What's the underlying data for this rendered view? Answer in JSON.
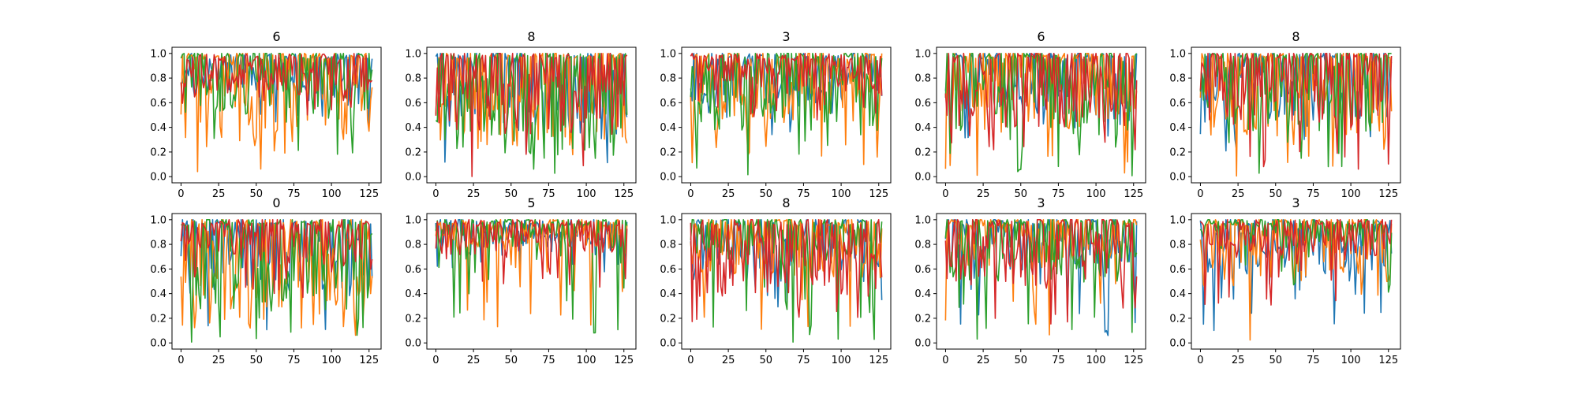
{
  "chart_data": [
    {
      "type": "line",
      "title": "6",
      "xlim": [
        -6,
        133
      ],
      "ylim": [
        -0.05,
        1.05
      ],
      "xticks": [
        0,
        25,
        50,
        75,
        100,
        125
      ],
      "yticks": [
        0.0,
        0.2,
        0.4,
        0.6,
        0.8,
        1.0
      ],
      "points": 128,
      "profile": [
        {
          "base": 0.83,
          "amp": 0.18,
          "floor": 0.35
        },
        {
          "base": 0.68,
          "amp": 0.55,
          "floor": 0.0
        },
        {
          "base": 0.8,
          "amp": 0.4,
          "floor": 0.1
        },
        {
          "base": 0.82,
          "amp": 0.2,
          "floor": 0.45
        }
      ]
    },
    {
      "type": "line",
      "title": "8",
      "xlim": [
        -6,
        133
      ],
      "ylim": [
        -0.05,
        1.05
      ],
      "xticks": [
        0,
        25,
        50,
        75,
        100,
        125
      ],
      "yticks": [
        0.0,
        0.2,
        0.4,
        0.6,
        0.8,
        1.0
      ],
      "points": 128,
      "profile": [
        {
          "base": 0.7,
          "amp": 0.5,
          "floor": 0.05
        },
        {
          "base": 0.65,
          "amp": 0.55,
          "floor": 0.0
        },
        {
          "base": 0.6,
          "amp": 0.6,
          "floor": 0.0
        },
        {
          "base": 0.7,
          "amp": 0.5,
          "floor": 0.0
        }
      ]
    },
    {
      "type": "line",
      "title": "3",
      "xlim": [
        -6,
        133
      ],
      "ylim": [
        -0.05,
        1.05
      ],
      "xticks": [
        0,
        25,
        50,
        75,
        100,
        125
      ],
      "yticks": [
        0.0,
        0.2,
        0.4,
        0.6,
        0.8,
        1.0
      ],
      "points": 128,
      "profile": [
        {
          "base": 0.78,
          "amp": 0.3,
          "floor": 0.3
        },
        {
          "base": 0.75,
          "amp": 0.45,
          "floor": 0.05
        },
        {
          "base": 0.72,
          "amp": 0.5,
          "floor": 0.0
        },
        {
          "base": 0.82,
          "amp": 0.22,
          "floor": 0.45
        }
      ]
    },
    {
      "type": "line",
      "title": "6",
      "xlim": [
        -6,
        133
      ],
      "ylim": [
        -0.05,
        1.05
      ],
      "xticks": [
        0,
        25,
        50,
        75,
        100,
        125
      ],
      "yticks": [
        0.0,
        0.2,
        0.4,
        0.6,
        0.8,
        1.0
      ],
      "points": 128,
      "profile": [
        {
          "base": 0.75,
          "amp": 0.35,
          "floor": 0.3
        },
        {
          "base": 0.72,
          "amp": 0.5,
          "floor": 0.0
        },
        {
          "base": 0.7,
          "amp": 0.5,
          "floor": 0.0
        },
        {
          "base": 0.72,
          "amp": 0.45,
          "floor": 0.1
        }
      ]
    },
    {
      "type": "line",
      "title": "8",
      "xlim": [
        -6,
        133
      ],
      "ylim": [
        -0.05,
        1.05
      ],
      "xticks": [
        0,
        25,
        50,
        75,
        100,
        125
      ],
      "yticks": [
        0.0,
        0.2,
        0.4,
        0.6,
        0.8,
        1.0
      ],
      "points": 128,
      "profile": [
        {
          "base": 0.72,
          "amp": 0.4,
          "floor": 0.2
        },
        {
          "base": 0.68,
          "amp": 0.5,
          "floor": 0.0
        },
        {
          "base": 0.72,
          "amp": 0.5,
          "floor": 0.0
        },
        {
          "base": 0.72,
          "amp": 0.45,
          "floor": 0.0
        }
      ]
    },
    {
      "type": "line",
      "title": "0",
      "xlim": [
        -6,
        133
      ],
      "ylim": [
        -0.05,
        1.05
      ],
      "xticks": [
        0,
        25,
        50,
        75,
        100,
        125
      ],
      "yticks": [
        0.0,
        0.2,
        0.4,
        0.6,
        0.8,
        1.0
      ],
      "points": 128,
      "profile": [
        {
          "base": 0.72,
          "amp": 0.45,
          "floor": 0.05
        },
        {
          "base": 0.55,
          "amp": 0.6,
          "floor": 0.0
        },
        {
          "base": 0.65,
          "amp": 0.55,
          "floor": 0.0
        },
        {
          "base": 0.82,
          "amp": 0.25,
          "floor": 0.3
        }
      ]
    },
    {
      "type": "line",
      "title": "5",
      "xlim": [
        -6,
        133
      ],
      "ylim": [
        -0.05,
        1.05
      ],
      "xticks": [
        0,
        25,
        50,
        75,
        100,
        125
      ],
      "yticks": [
        0.0,
        0.2,
        0.4,
        0.6,
        0.8,
        1.0
      ],
      "points": 128,
      "profile": [
        {
          "base": 0.87,
          "amp": 0.16,
          "floor": 0.55
        },
        {
          "base": 0.86,
          "amp": 0.2,
          "floor": 0.1
        },
        {
          "base": 0.9,
          "amp": 0.18,
          "floor": 0.0
        },
        {
          "base": 0.85,
          "amp": 0.18,
          "floor": 0.45
        }
      ]
    },
    {
      "type": "line",
      "title": "8",
      "xlim": [
        -6,
        133
      ],
      "ylim": [
        -0.05,
        1.05
      ],
      "xticks": [
        0,
        25,
        50,
        75,
        100,
        125
      ],
      "yticks": [
        0.0,
        0.2,
        0.4,
        0.6,
        0.8,
        1.0
      ],
      "points": 128,
      "profile": [
        {
          "base": 0.8,
          "amp": 0.3,
          "floor": 0.25
        },
        {
          "base": 0.78,
          "amp": 0.35,
          "floor": 0.1
        },
        {
          "base": 0.85,
          "amp": 0.25,
          "floor": 0.0
        },
        {
          "base": 0.7,
          "amp": 0.45,
          "floor": 0.1
        }
      ]
    },
    {
      "type": "line",
      "title": "3",
      "xlim": [
        -6,
        133
      ],
      "ylim": [
        -0.05,
        1.05
      ],
      "xticks": [
        0,
        25,
        50,
        75,
        100,
        125
      ],
      "yticks": [
        0.0,
        0.2,
        0.4,
        0.6,
        0.8,
        1.0
      ],
      "points": 128,
      "profile": [
        {
          "base": 0.8,
          "amp": 0.3,
          "floor": 0.05
        },
        {
          "base": 0.82,
          "amp": 0.3,
          "floor": 0.05
        },
        {
          "base": 0.78,
          "amp": 0.4,
          "floor": 0.0
        },
        {
          "base": 0.75,
          "amp": 0.4,
          "floor": 0.05
        }
      ]
    },
    {
      "type": "line",
      "title": "3",
      "xlim": [
        -6,
        133
      ],
      "ylim": [
        -0.05,
        1.05
      ],
      "xticks": [
        0,
        25,
        50,
        75,
        100,
        125
      ],
      "yticks": [
        0.0,
        0.2,
        0.4,
        0.6,
        0.8,
        1.0
      ],
      "points": 128,
      "profile": [
        {
          "base": 0.8,
          "amp": 0.3,
          "floor": 0.1
        },
        {
          "base": 0.75,
          "amp": 0.4,
          "floor": 0.0
        },
        {
          "base": 0.88,
          "amp": 0.18,
          "floor": 0.4
        },
        {
          "base": 0.82,
          "amp": 0.25,
          "floor": 0.3
        }
      ]
    }
  ],
  "colors": {
    "series": [
      "#1f77b4",
      "#ff7f0e",
      "#2ca02c",
      "#d62728"
    ],
    "axes": "#000000",
    "background": "#ffffff"
  }
}
